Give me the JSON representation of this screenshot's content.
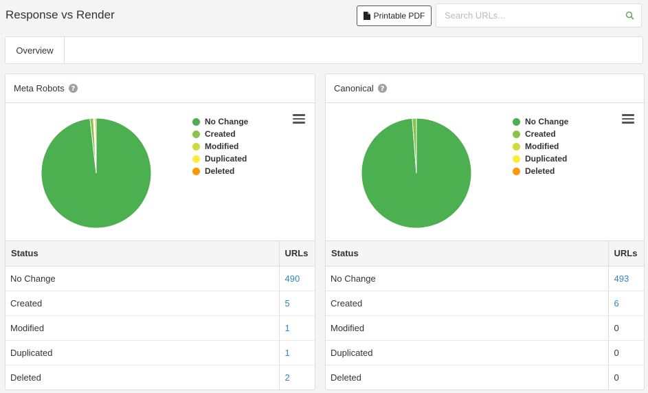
{
  "header": {
    "title": "Response vs Render",
    "pdf_label": "Printable PDF",
    "search_placeholder": "Search URLs..."
  },
  "tabs": [
    {
      "label": "Overview"
    }
  ],
  "colors": {
    "no_change": "#4caf50",
    "created": "#8bc34a",
    "modified": "#cddc39",
    "duplicated": "#ffeb3b",
    "deleted": "#ff9800"
  },
  "panels": [
    {
      "title": "Meta Robots",
      "table_headers": {
        "status": "Status",
        "urls": "URLs"
      },
      "legend": [
        "No Change",
        "Created",
        "Modified",
        "Duplicated",
        "Deleted"
      ],
      "rows": [
        {
          "status": "No Change",
          "urls": "490",
          "link": true
        },
        {
          "status": "Created",
          "urls": "5",
          "link": true
        },
        {
          "status": "Modified",
          "urls": "1",
          "link": true
        },
        {
          "status": "Duplicated",
          "urls": "1",
          "link": true
        },
        {
          "status": "Deleted",
          "urls": "2",
          "link": true
        }
      ]
    },
    {
      "title": "Canonical",
      "table_headers": {
        "status": "Status",
        "urls": "URLs"
      },
      "legend": [
        "No Change",
        "Created",
        "Modified",
        "Duplicated",
        "Deleted"
      ],
      "rows": [
        {
          "status": "No Change",
          "urls": "493",
          "link": true
        },
        {
          "status": "Created",
          "urls": "6",
          "link": true
        },
        {
          "status": "Modified",
          "urls": "0",
          "link": false
        },
        {
          "status": "Duplicated",
          "urls": "0",
          "link": false
        },
        {
          "status": "Deleted",
          "urls": "0",
          "link": false
        }
      ]
    }
  ],
  "chart_data": [
    {
      "type": "pie",
      "categories": [
        "No Change",
        "Created",
        "Modified",
        "Duplicated",
        "Deleted"
      ],
      "values": [
        490,
        5,
        1,
        1,
        2
      ],
      "legend": "right"
    },
    {
      "type": "pie",
      "categories": [
        "No Change",
        "Created",
        "Modified",
        "Duplicated",
        "Deleted"
      ],
      "values": [
        493,
        6,
        0,
        0,
        0
      ],
      "legend": "right"
    }
  ]
}
